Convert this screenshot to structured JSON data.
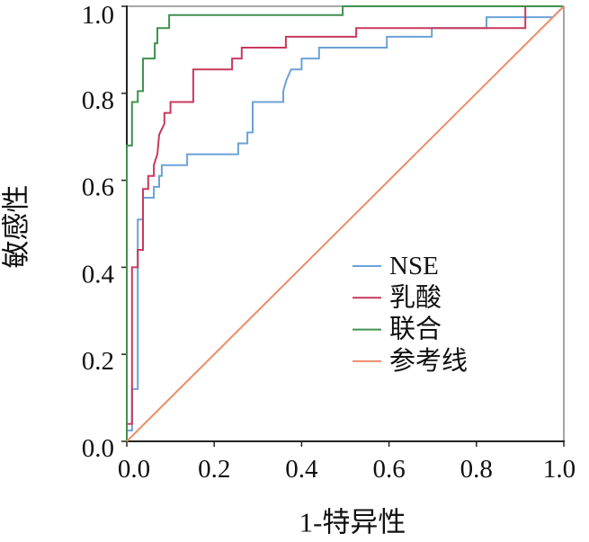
{
  "chart_data": {
    "type": "line",
    "xlabel": "1-特异性",
    "ylabel": "敏感性",
    "xlim": [
      0,
      1
    ],
    "ylim": [
      0,
      1
    ],
    "xticks": [
      "0.0",
      "0.2",
      "0.4",
      "0.6",
      "0.8",
      "1.0"
    ],
    "yticks": [
      "0.0",
      "0.2",
      "0.4",
      "0.6",
      "0.8",
      "1.0"
    ],
    "grid": false,
    "legend_position": "right",
    "series": [
      {
        "name": "NSE",
        "color": "#6aa2d8",
        "x": [
          0,
          0,
          0.012,
          0.012,
          0.025,
          0.025,
          0.037,
          0.037,
          0.062,
          0.062,
          0.074,
          0.074,
          0.08,
          0.08,
          0.138,
          0.138,
          0.255,
          0.255,
          0.276,
          0.276,
          0.288,
          0.288,
          0.358,
          0.358,
          0.365,
          0.376,
          0.4,
          0.4,
          0.44,
          0.44,
          0.595,
          0.595,
          0.698,
          0.698,
          0.823,
          0.823,
          0.975,
          1.0
        ],
        "y": [
          0,
          0.025,
          0.025,
          0.12,
          0.12,
          0.51,
          0.51,
          0.56,
          0.56,
          0.585,
          0.585,
          0.61,
          0.61,
          0.635,
          0.635,
          0.66,
          0.66,
          0.685,
          0.685,
          0.71,
          0.71,
          0.78,
          0.78,
          0.805,
          0.83,
          0.855,
          0.855,
          0.88,
          0.88,
          0.905,
          0.905,
          0.93,
          0.93,
          0.95,
          0.95,
          0.975,
          0.975,
          1.0
        ]
      },
      {
        "name": "乳酸",
        "color": "#c9385d",
        "x": [
          0,
          0,
          0.012,
          0.012,
          0.025,
          0.025,
          0.037,
          0.037,
          0.049,
          0.049,
          0.062,
          0.062,
          0.07,
          0.074,
          0.086,
          0.086,
          0.1,
          0.1,
          0.152,
          0.152,
          0.241,
          0.241,
          0.263,
          0.263,
          0.364,
          0.364,
          0.525,
          0.525,
          0.912,
          0.912,
          1.0
        ],
        "y": [
          0,
          0.04,
          0.04,
          0.4,
          0.4,
          0.44,
          0.44,
          0.58,
          0.58,
          0.61,
          0.61,
          0.635,
          0.66,
          0.705,
          0.73,
          0.755,
          0.755,
          0.78,
          0.78,
          0.855,
          0.855,
          0.88,
          0.88,
          0.905,
          0.905,
          0.93,
          0.93,
          0.95,
          0.95,
          1.0,
          1.0
        ]
      },
      {
        "name": "联合",
        "color": "#40914f",
        "x": [
          0,
          0,
          0.012,
          0.012,
          0.025,
          0.025,
          0.037,
          0.037,
          0.064,
          0.064,
          0.07,
          0.07,
          0.097,
          0.097,
          0.494,
          0.494,
          1.0
        ],
        "y": [
          0,
          0.68,
          0.68,
          0.78,
          0.78,
          0.805,
          0.805,
          0.88,
          0.88,
          0.915,
          0.915,
          0.95,
          0.95,
          0.98,
          0.98,
          1.0,
          1.0
        ]
      },
      {
        "name": "参考线",
        "color": "#ec8c6a",
        "x": [
          0,
          1
        ],
        "y": [
          0,
          1
        ]
      }
    ]
  }
}
